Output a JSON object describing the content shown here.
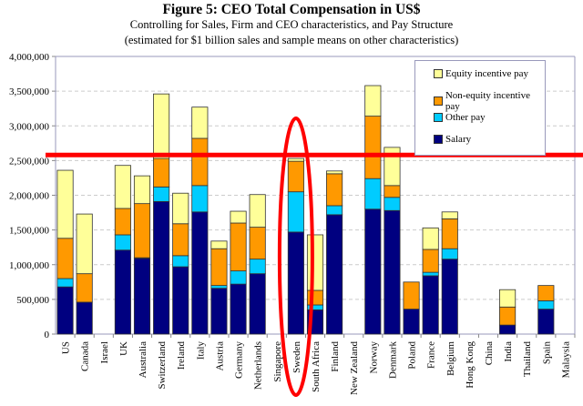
{
  "chart_data": {
    "type": "bar",
    "stacked": true,
    "title": "Figure 5: CEO Total Compensation in US$",
    "subtitle": [
      "Controlling for Sales, Firm and CEO characteristics, and Pay Structure",
      "(estimated for $1 billion sales and sample means on other characteristics)"
    ],
    "xlabel": "",
    "ylabel": "",
    "ylim": [
      0,
      4000000
    ],
    "yticks": [
      0,
      500000,
      1000000,
      1500000,
      2000000,
      2500000,
      3000000,
      3500000,
      4000000
    ],
    "ytick_labels": [
      "0",
      "500,000",
      "1,000,000",
      "1,500,000",
      "2,000,000",
      "2,500,000",
      "3,000,000",
      "3,500,000",
      "4,000,000"
    ],
    "grid": "horizontal dashed",
    "legend_position": "top-right",
    "categories": [
      "US",
      "Canada",
      "Israel",
      "UK",
      "Australia",
      "Switzerland",
      "Ireland",
      "Italy",
      "Austria",
      "Germany",
      "Netherlands",
      "Singapore",
      "Sweden",
      "South Africa",
      "Finland",
      "New Zealand",
      "Norway",
      "Denmark",
      "Poland",
      "France",
      "Belgium",
      "Hong Kong",
      "China",
      "India",
      "Thailand",
      "Spain",
      "Malaysia"
    ],
    "series": [
      {
        "name": "Salary",
        "color": "#000080",
        "values": [
          680000,
          460000,
          0,
          1210000,
          1090000,
          1910000,
          970000,
          1760000,
          660000,
          720000,
          870000,
          0,
          1470000,
          350000,
          1720000,
          0,
          1800000,
          1780000,
          360000,
          840000,
          1080000,
          0,
          0,
          130000,
          0,
          360000,
          0
        ]
      },
      {
        "name": "Other pay",
        "color": "#00ccff",
        "values": [
          120000,
          0,
          0,
          220000,
          10000,
          210000,
          160000,
          380000,
          40000,
          190000,
          210000,
          0,
          580000,
          70000,
          130000,
          0,
          440000,
          190000,
          0,
          50000,
          150000,
          0,
          0,
          0,
          0,
          120000,
          0
        ]
      },
      {
        "name": "Non-equity incentive pay",
        "color": "#ff9900",
        "values": [
          580000,
          410000,
          0,
          380000,
          780000,
          410000,
          460000,
          680000,
          530000,
          690000,
          460000,
          0,
          440000,
          210000,
          460000,
          0,
          900000,
          170000,
          390000,
          330000,
          430000,
          0,
          0,
          260000,
          0,
          220000,
          0
        ]
      },
      {
        "name": "Equity incentive pay",
        "color": "#ffff99",
        "values": [
          980000,
          860000,
          0,
          620000,
          400000,
          930000,
          440000,
          450000,
          110000,
          170000,
          470000,
          0,
          40000,
          800000,
          40000,
          0,
          440000,
          550000,
          0,
          310000,
          100000,
          0,
          0,
          250000,
          0,
          0,
          0
        ]
      }
    ],
    "legend_order": [
      "Equity incentive pay",
      "Non-equity incentive pay",
      "Other pay",
      "Salary"
    ],
    "annotations": [
      {
        "type": "horizontal-line",
        "color": "#ff0000",
        "value": 2580000
      },
      {
        "type": "ellipse",
        "color": "#ff0000",
        "category": "Sweden"
      }
    ]
  }
}
